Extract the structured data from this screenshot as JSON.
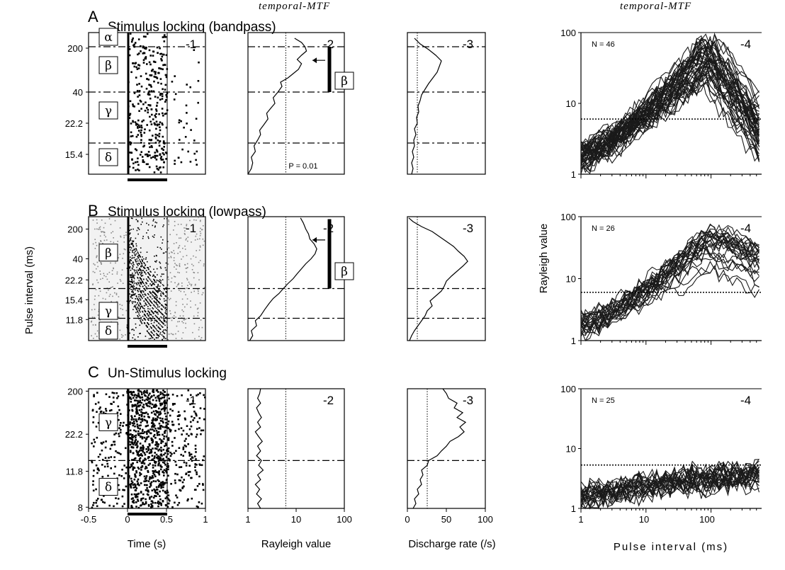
{
  "figure": {
    "rows": [
      {
        "id": "A",
        "letter": "A",
        "title": "Stimulus locking  (bandpass)",
        "raster": {
          "ytick_labels": [
            "200",
            "40",
            "22.2",
            "15.4"
          ],
          "band_labels": [
            "α",
            "β",
            "γ",
            "δ"
          ],
          "panel_num": "-1"
        },
        "mtf": {
          "header": "temporal-MTF",
          "panel_num": "-2",
          "band_label": "β",
          "p_label": "P = 0.01",
          "curve": [
            [
              1,
              0
            ],
            [
              1.2,
              0.04
            ],
            [
              1.3,
              0.08
            ],
            [
              1.2,
              0.12
            ],
            [
              1.5,
              0.16
            ],
            [
              1.4,
              0.2
            ],
            [
              1.7,
              0.24
            ],
            [
              2,
              0.28
            ],
            [
              1.9,
              0.31
            ],
            [
              2.4,
              0.35
            ],
            [
              3,
              0.39
            ],
            [
              2.8,
              0.43
            ],
            [
              3.6,
              0.47
            ],
            [
              4.4,
              0.5
            ],
            [
              4,
              0.54
            ],
            [
              5.2,
              0.58
            ],
            [
              6.5,
              0.62
            ],
            [
              6,
              0.65
            ],
            [
              9,
              0.68
            ],
            [
              12,
              0.71
            ],
            [
              16,
              0.74
            ],
            [
              19,
              0.78
            ],
            [
              15,
              0.81
            ],
            [
              19,
              0.84
            ],
            [
              25,
              0.87
            ],
            [
              23,
              0.9
            ],
            [
              19,
              0.93
            ],
            [
              13,
              0.96
            ]
          ]
        },
        "rate": {
          "panel_num": "-3",
          "curve": [
            [
              6,
              0
            ],
            [
              8,
              0.04
            ],
            [
              6,
              0.08
            ],
            [
              9,
              0.12
            ],
            [
              7,
              0.16
            ],
            [
              10,
              0.2
            ],
            [
              9,
              0.24
            ],
            [
              12,
              0.28
            ],
            [
              10,
              0.32
            ],
            [
              14,
              0.36
            ],
            [
              13,
              0.4
            ],
            [
              16,
              0.44
            ],
            [
              15,
              0.48
            ],
            [
              18,
              0.52
            ],
            [
              20,
              0.56
            ],
            [
              25,
              0.6
            ],
            [
              30,
              0.64
            ],
            [
              36,
              0.68
            ],
            [
              42,
              0.72
            ],
            [
              45,
              0.76
            ],
            [
              48,
              0.8
            ],
            [
              40,
              0.84
            ],
            [
              30,
              0.88
            ],
            [
              18,
              0.92
            ],
            [
              10,
              0.96
            ]
          ]
        },
        "population": {
          "header": "temporal-MTF",
          "panel_num": "-4",
          "n_label": "N = 46",
          "ytick_labels": [
            "100",
            "10",
            "1"
          ],
          "threshold": 6,
          "count": 46
        }
      },
      {
        "id": "B",
        "letter": "B",
        "title": "Stimulus locking  (lowpass)",
        "raster": {
          "ytick_labels": [
            "200",
            "40",
            "22.2",
            "15.4",
            "11.8"
          ],
          "band_labels": [
            "β",
            "γ",
            "δ"
          ],
          "panel_num": "-1"
        },
        "mtf": {
          "panel_num": "-2",
          "band_label": "β",
          "curve": [
            [
              1.1,
              0
            ],
            [
              1.3,
              0.04
            ],
            [
              1.2,
              0.08
            ],
            [
              1.6,
              0.12
            ],
            [
              1.5,
              0.16
            ],
            [
              2,
              0.2
            ],
            [
              2.5,
              0.25
            ],
            [
              3.2,
              0.3
            ],
            [
              4,
              0.34
            ],
            [
              5.5,
              0.38
            ],
            [
              7,
              0.42
            ],
            [
              9,
              0.46
            ],
            [
              12,
              0.5
            ],
            [
              15,
              0.54
            ],
            [
              19,
              0.58
            ],
            [
              24,
              0.62
            ],
            [
              32,
              0.66
            ],
            [
              40,
              0.7
            ],
            [
              44,
              0.74
            ],
            [
              38,
              0.78
            ],
            [
              30,
              0.82
            ],
            [
              28,
              0.86
            ],
            [
              24,
              0.9
            ],
            [
              21,
              0.95
            ],
            [
              18,
              0.99
            ]
          ]
        },
        "rate": {
          "panel_num": "-3",
          "curve": [
            [
              3,
              0
            ],
            [
              6,
              0.04
            ],
            [
              10,
              0.08
            ],
            [
              15,
              0.12
            ],
            [
              20,
              0.16
            ],
            [
              25,
              0.2
            ],
            [
              28,
              0.24
            ],
            [
              35,
              0.28
            ],
            [
              32,
              0.32
            ],
            [
              40,
              0.36
            ],
            [
              48,
              0.4
            ],
            [
              52,
              0.44
            ],
            [
              55,
              0.48
            ],
            [
              62,
              0.52
            ],
            [
              70,
              0.56
            ],
            [
              78,
              0.6
            ],
            [
              85,
              0.64
            ],
            [
              80,
              0.68
            ],
            [
              72,
              0.72
            ],
            [
              65,
              0.76
            ],
            [
              55,
              0.8
            ],
            [
              45,
              0.84
            ],
            [
              35,
              0.88
            ],
            [
              20,
              0.92
            ],
            [
              8,
              0.96
            ],
            [
              2,
              0.99
            ]
          ]
        },
        "population": {
          "panel_num": "-4",
          "n_label": "N = 26",
          "ytick_labels": [
            "100",
            "10",
            "1"
          ],
          "threshold": 6,
          "count": 26
        }
      },
      {
        "id": "C",
        "letter": "C",
        "title": "Un-Stimulus locking",
        "raster": {
          "ytick_labels": [
            "200",
            "22.2",
            "11.8",
            "8"
          ],
          "band_labels": [
            "γ",
            "δ"
          ],
          "panel_num": "-1"
        },
        "mtf": {
          "panel_num": "-2",
          "curve": [
            [
              2,
              0
            ],
            [
              1.7,
              0.04
            ],
            [
              2.1,
              0.08
            ],
            [
              1.6,
              0.12
            ],
            [
              1.9,
              0.16
            ],
            [
              1.5,
              0.2
            ],
            [
              2,
              0.24
            ],
            [
              1.7,
              0.28
            ],
            [
              2.3,
              0.32
            ],
            [
              1.8,
              0.36
            ],
            [
              2.1,
              0.4
            ],
            [
              1.6,
              0.44
            ],
            [
              2,
              0.48
            ],
            [
              1.7,
              0.52
            ],
            [
              2.2,
              0.56
            ],
            [
              1.8,
              0.6
            ],
            [
              1.5,
              0.64
            ],
            [
              2,
              0.68
            ],
            [
              1.7,
              0.72
            ],
            [
              2.1,
              0.76
            ],
            [
              1.8,
              0.8
            ],
            [
              1.6,
              0.84
            ],
            [
              2,
              0.88
            ],
            [
              1.7,
              0.92
            ],
            [
              1.9,
              0.96
            ],
            [
              2,
              1
            ]
          ]
        },
        "rate": {
          "panel_num": "-3",
          "curve": [
            [
              8,
              0
            ],
            [
              12,
              0.04
            ],
            [
              10,
              0.08
            ],
            [
              16,
              0.12
            ],
            [
              14,
              0.16
            ],
            [
              20,
              0.2
            ],
            [
              18,
              0.24
            ],
            [
              22,
              0.28
            ],
            [
              20,
              0.32
            ],
            [
              28,
              0.36
            ],
            [
              30,
              0.4
            ],
            [
              42,
              0.44
            ],
            [
              48,
              0.48
            ],
            [
              55,
              0.52
            ],
            [
              60,
              0.56
            ],
            [
              72,
              0.6
            ],
            [
              80,
              0.64
            ],
            [
              74,
              0.68
            ],
            [
              82,
              0.72
            ],
            [
              70,
              0.76
            ],
            [
              78,
              0.8
            ],
            [
              66,
              0.84
            ],
            [
              70,
              0.88
            ],
            [
              58,
              0.92
            ],
            [
              55,
              0.96
            ],
            [
              50,
              1
            ]
          ]
        },
        "population": {
          "panel_num": "-4",
          "n_label": "N = 25",
          "ytick_labels": [
            "100",
            "10",
            "1"
          ],
          "threshold": 5.3,
          "count": 25
        }
      }
    ],
    "y_axis_label": "Pulse interval (ms)",
    "bottom": {
      "raster_ticks": [
        "-0.5",
        "0",
        "0.5",
        "1"
      ],
      "raster_xlabel": "Time (s)",
      "mtf_ticks": [
        "1",
        "10",
        "100"
      ],
      "mtf_xlabel": "Rayleigh value",
      "rate_ticks": [
        "0",
        "50",
        "100"
      ],
      "rate_xlabel": "Discharge rate (/s)",
      "pop_ticks": [
        "1",
        "10",
        "100"
      ],
      "pop_xlabel": "Pulse interval (ms)"
    },
    "rayleigh_label": "Rayleigh value"
  }
}
